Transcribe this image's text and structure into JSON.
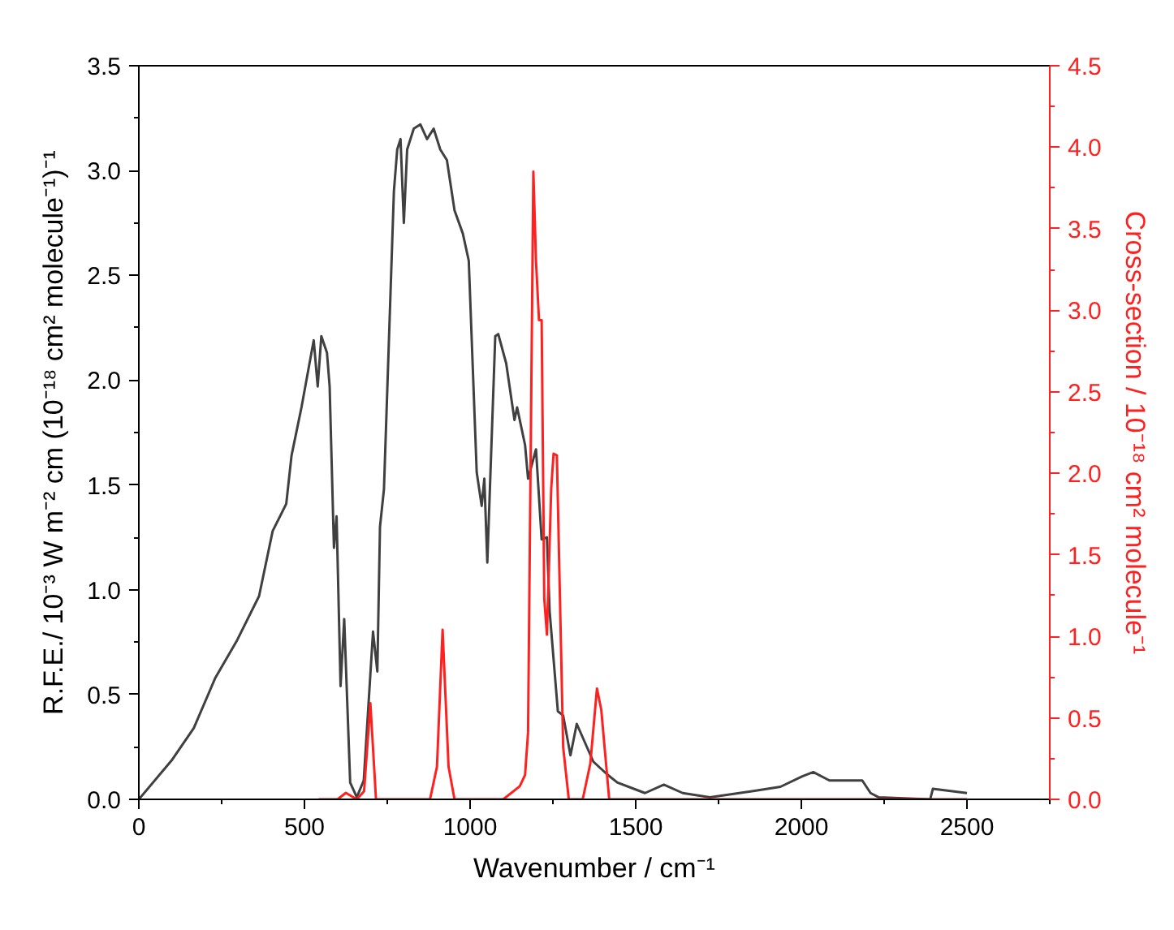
{
  "chart_data": {
    "type": "line",
    "xlabel": "Wavenumber / cm⁻¹",
    "ylabel": "R.F.E./ 10⁻³ W m⁻² cm (10⁻¹⁸ cm² molecule⁻¹)⁻¹",
    "y2label": "Cross-section / 10⁻¹⁸ cm² molecule⁻¹",
    "xlim": [
      0,
      2750
    ],
    "ylim": [
      0,
      3.5
    ],
    "y2lim": [
      0,
      4.5
    ],
    "xticks": [
      0,
      {
        "value": 250,
        "label": null
      },
      500,
      {
        "value": 750,
        "label": null
      },
      1000,
      {
        "value": 1250,
        "label": null
      },
      1500,
      {
        "value": 1750,
        "label": null
      },
      2000,
      {
        "value": 2250,
        "label": null
      },
      2500,
      {
        "value": 2750,
        "label": null
      }
    ],
    "yticks": [
      {
        "value": 0,
        "label": "0.0"
      },
      {
        "value": 0.25,
        "label": null
      },
      {
        "value": 0.5,
        "label": "0.5"
      },
      {
        "value": 0.75,
        "label": null
      },
      {
        "value": 1,
        "label": "1.0"
      },
      {
        "value": 1.25,
        "label": null
      },
      {
        "value": 1.5,
        "label": "1.5"
      },
      {
        "value": 1.75,
        "label": null
      },
      {
        "value": 2,
        "label": "2.0"
      },
      {
        "value": 2.25,
        "label": null
      },
      {
        "value": 2.5,
        "label": "2.5"
      },
      {
        "value": 2.75,
        "label": null
      },
      {
        "value": 3,
        "label": "3.0"
      },
      {
        "value": 3.25,
        "label": null
      },
      {
        "value": 3.5,
        "label": "3.5"
      }
    ],
    "y2ticks": [
      {
        "value": 0,
        "label": "0.0"
      },
      {
        "value": 0.25,
        "label": null
      },
      {
        "value": 0.5,
        "label": "0.5"
      },
      {
        "value": 0.75,
        "label": null
      },
      {
        "value": 1,
        "label": "1.0"
      },
      {
        "value": 1.25,
        "label": null
      },
      {
        "value": 1.5,
        "label": "1.5"
      },
      {
        "value": 1.75,
        "label": null
      },
      {
        "value": 2,
        "label": "2.0"
      },
      {
        "value": 2.25,
        "label": null
      },
      {
        "value": 2.5,
        "label": "2.5"
      },
      {
        "value": 2.75,
        "label": null
      },
      {
        "value": 3,
        "label": "3.0"
      },
      {
        "value": 3.25,
        "label": null
      },
      {
        "value": 3.5,
        "label": "3.5"
      },
      {
        "value": 3.75,
        "label": null
      },
      {
        "value": 4,
        "label": "4.0"
      },
      {
        "value": 4.25,
        "label": null
      },
      {
        "value": 4.5,
        "label": "4.5"
      }
    ],
    "grid": false,
    "marker": "none",
    "line_style": "solid",
    "series": [
      {
        "color": "#404040",
        "x": [
          0,
          101,
          166,
          231,
          297,
          363,
          404,
          445,
          461,
          491,
          528,
          540,
          551,
          568,
          576,
          589,
          597,
          609,
          620,
          638,
          658,
          679,
          707,
          720,
          728,
          740,
          770,
          780,
          790,
          800,
          810,
          830,
          850,
          870,
          890,
          910,
          930,
          953,
          978,
          996,
          1020,
          1035,
          1043,
          1052,
          1076,
          1085,
          1109,
          1134,
          1142,
          1166,
          1175,
          1199,
          1216,
          1232,
          1240,
          1265,
          1281,
          1303,
          1322,
          1347,
          1372,
          1413,
          1445,
          1528,
          1585,
          1642,
          1724,
          1855,
          1937,
          2003,
          2036,
          2085,
          2167,
          2184,
          2209,
          2233,
          2389,
          2397,
          2500
        ],
        "values": [
          0,
          0.19,
          0.34,
          0.58,
          0.76,
          0.97,
          1.28,
          1.41,
          1.64,
          1.87,
          2.19,
          1.97,
          2.21,
          2.13,
          1.97,
          1.2,
          1.35,
          0.54,
          0.86,
          0.08,
          0.01,
          0.09,
          0.8,
          0.61,
          1.3,
          1.48,
          2.9,
          3.1,
          3.15,
          2.75,
          3.1,
          3.2,
          3.22,
          3.15,
          3.2,
          3.1,
          3.05,
          2.81,
          2.7,
          2.57,
          1.56,
          1.4,
          1.53,
          1.13,
          2.21,
          2.22,
          2.08,
          1.81,
          1.87,
          1.69,
          1.53,
          1.67,
          1.24,
          1.25,
          0.9,
          0.42,
          0.4,
          0.21,
          0.36,
          0.27,
          0.18,
          0.12,
          0.08,
          0.03,
          0.07,
          0.03,
          0.01,
          0.04,
          0.06,
          0.11,
          0.13,
          0.09,
          0.09,
          0.09,
          0.03,
          0.01,
          0,
          0.05,
          0.03
        ]
      },
      {
        "color": "#ff2020",
        "axis": "y2",
        "x": [
          543,
          600,
          625,
          658,
          680,
          699,
          716,
          879,
          900,
          917,
          935,
          953,
          1100,
          1150,
          1166,
          1175,
          1191,
          1199,
          1208,
          1216,
          1224,
          1232,
          1245,
          1252,
          1262,
          1281,
          1298,
          1340,
          1363,
          1383,
          1396,
          1420,
          1600,
          2000,
          2500
        ],
        "values": [
          0,
          0,
          0.04,
          0,
          0.05,
          0.59,
          0,
          0,
          0.2,
          1.04,
          0.2,
          0,
          0,
          0.08,
          0.15,
          0.41,
          3.85,
          3.3,
          2.94,
          2.94,
          1.23,
          1.01,
          1.91,
          2.12,
          2.11,
          0.32,
          0,
          0,
          0.22,
          0.68,
          0.55,
          0,
          0,
          0,
          0
        ]
      }
    ]
  }
}
